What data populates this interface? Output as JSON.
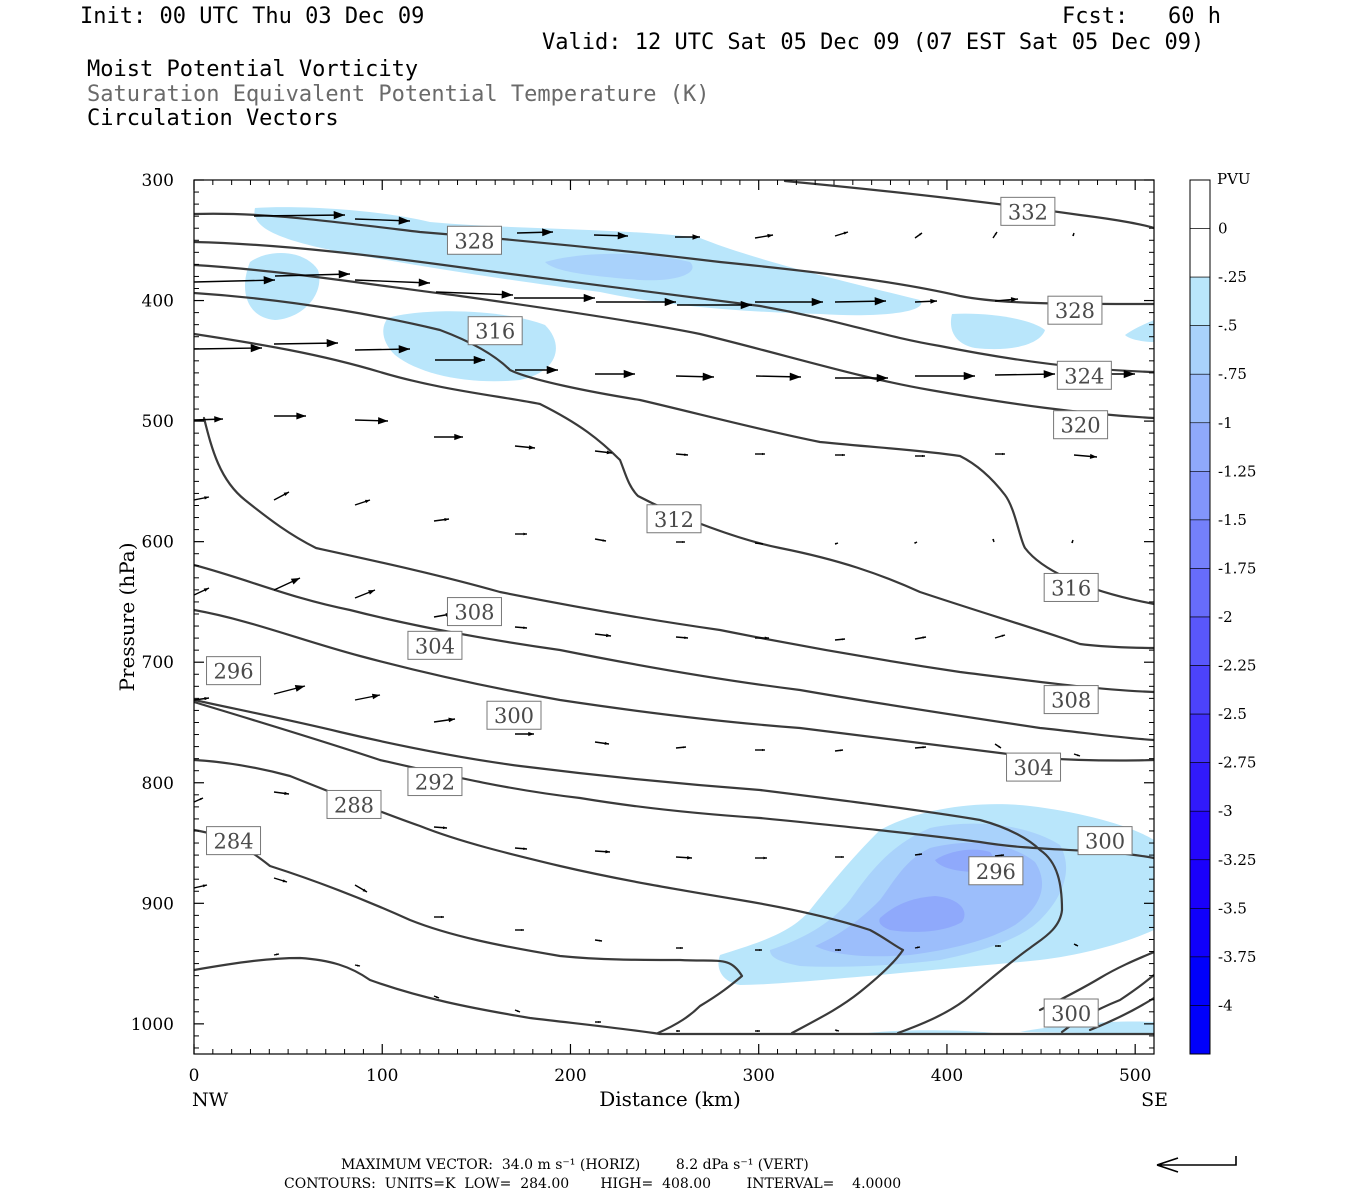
{
  "header": {
    "init": "Init: 00 UTC Thu 03 Dec 09",
    "fcst": "Fcst:   60 h",
    "valid": "Valid: 12 UTC Sat 05 Dec 09 (07 EST Sat 05 Dec 09)",
    "field1": "Moist Potential Vorticity",
    "field2": "Saturation Equivalent Potential Temperature (K)",
    "field3": "Circulation Vectors"
  },
  "footer": {
    "max_vector": "MAXIMUM VECTOR:  34.0 m s⁻¹ (HORIZ)        8.2 dPa s⁻¹ (VERT)",
    "contours": "CONTOURS:  UNITS=K  LOW=  284.00       HIGH=  408.00        INTERVAL=    4.0000"
  },
  "colors": {
    "pv_fill": [
      "#ffffff",
      "#b9e6fb",
      "#a9d2fb",
      "#9cbefb",
      "#8fa9fb",
      "#8295fb",
      "#7480fb",
      "#676cfb",
      "#5957fb",
      "#4c43fb",
      "#3f2efb",
      "#311afb",
      "#2406fb",
      "#1a00fb",
      "#1000fb",
      "#0000fb"
    ],
    "contour": "#3a3a3a",
    "vector": "#000000"
  },
  "chart_data": {
    "type": "contour_cross_section",
    "xlabel": "Distance (km)",
    "ylabel": "Pressure (hPa)",
    "xlim": [
      0,
      510
    ],
    "ylim": [
      1025,
      300
    ],
    "x_ticks": [
      0,
      100,
      200,
      300,
      400,
      500
    ],
    "y_ticks": [
      300,
      400,
      500,
      600,
      700,
      800,
      900,
      1000
    ],
    "x_end_labels": {
      "left": "NW",
      "right": "SE"
    },
    "colorbar": {
      "title": "PVU",
      "ticks": [
        "0",
        "-.25",
        "-.5",
        "-.75",
        "-1",
        "-1.25",
        "-1.5",
        "-1.75",
        "-2",
        "-2.25",
        "-2.5",
        "-2.75",
        "-3",
        "-3.25",
        "-3.5",
        "-3.75",
        "-4"
      ]
    },
    "contour_labels": [
      {
        "text": "332",
        "x": 443,
        "p": 326
      },
      {
        "text": "328",
        "x": 149,
        "p": 350
      },
      {
        "text": "328",
        "x": 468,
        "p": 408
      },
      {
        "text": "324",
        "x": 473,
        "p": 462
      },
      {
        "text": "320",
        "x": 471,
        "p": 503
      },
      {
        "text": "316",
        "x": 160,
        "p": 425
      },
      {
        "text": "316",
        "x": 466,
        "p": 638
      },
      {
        "text": "312",
        "x": 255,
        "p": 581
      },
      {
        "text": "308",
        "x": 149,
        "p": 658
      },
      {
        "text": "308",
        "x": 466,
        "p": 731
      },
      {
        "text": "304",
        "x": 128,
        "p": 686
      },
      {
        "text": "304",
        "x": 446,
        "p": 787
      },
      {
        "text": "300",
        "x": 170,
        "p": 744
      },
      {
        "text": "300",
        "x": 484,
        "p": 848
      },
      {
        "text": "300",
        "x": 466,
        "p": 991
      },
      {
        "text": "296",
        "x": 21,
        "p": 707
      },
      {
        "text": "296",
        "x": 426,
        "p": 873
      },
      {
        "text": "292",
        "x": 128,
        "p": 799
      },
      {
        "text": "288",
        "x": 85,
        "p": 818
      },
      {
        "text": "284",
        "x": 21,
        "p": 848
      }
    ]
  }
}
